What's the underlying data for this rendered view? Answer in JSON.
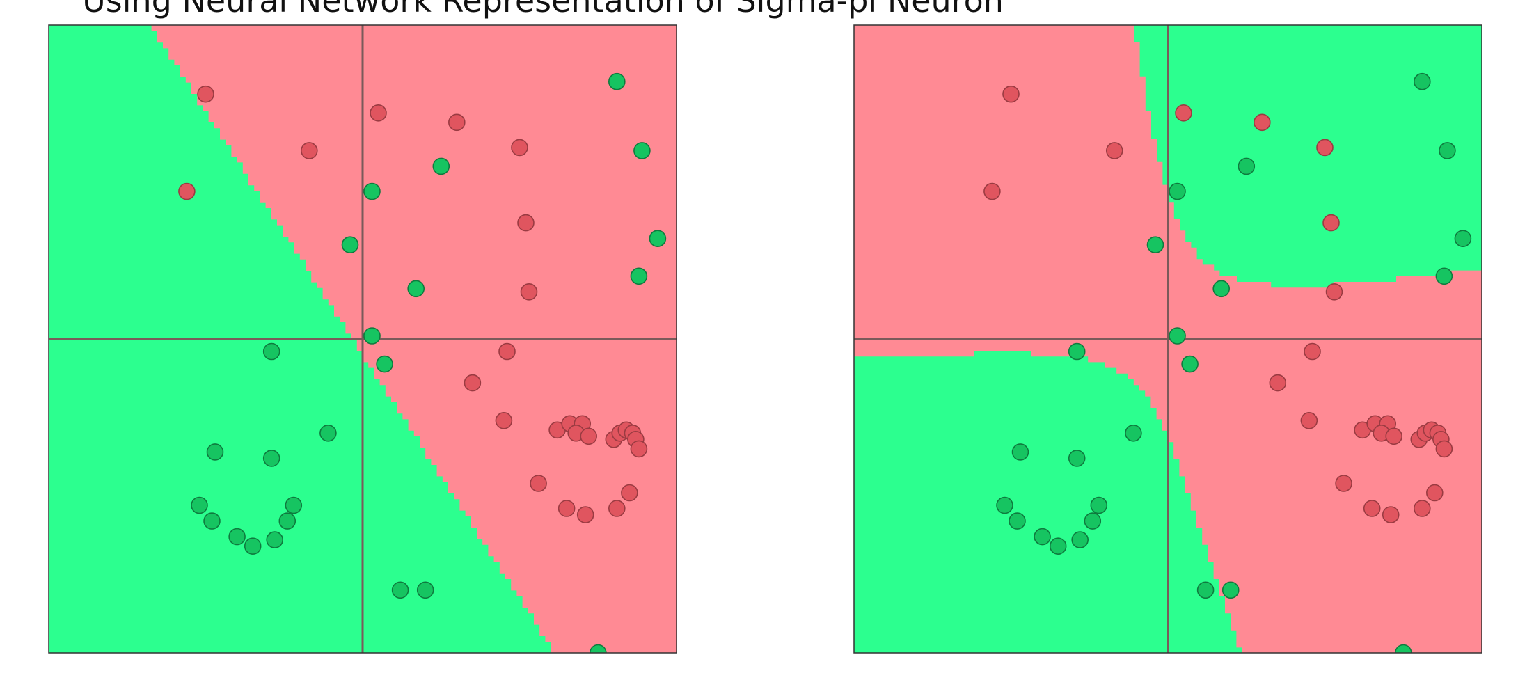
{
  "title": "Using Neural Network Representation of Sigma-pi Neuron",
  "colors": {
    "region_red": "#ff8a94",
    "region_green": "#2cff8f",
    "point_red": "#e0555f",
    "point_red_edge": "#9a3b42",
    "point_green": "#16c461",
    "point_green_edge": "#0f7a3e",
    "axis": "#7a5a5a",
    "frame": "#333333"
  },
  "chart_data": [
    {
      "type": "scatter",
      "model": "linear",
      "xlim": [
        -1,
        1
      ],
      "ylim": [
        -1,
        1
      ],
      "axes_through_origin": true,
      "grid": false,
      "legend": "none",
      "decision_boundary": "linear",
      "boundary_line": {
        "slope": -1.55,
        "intercept": -0.05
      },
      "series": [
        {
          "class": "red",
          "points": [
            [
              -0.5,
              0.78
            ],
            [
              -0.17,
              0.6
            ],
            [
              -0.56,
              0.47
            ],
            [
              0.05,
              0.72
            ],
            [
              0.3,
              0.69
            ],
            [
              0.5,
              0.61
            ],
            [
              0.52,
              0.37
            ],
            [
              0.53,
              0.15
            ],
            [
              0.46,
              -0.04
            ],
            [
              0.35,
              -0.14
            ],
            [
              0.45,
              -0.26
            ],
            [
              0.62,
              -0.29
            ],
            [
              0.66,
              -0.27
            ],
            [
              0.7,
              -0.27
            ],
            [
              0.68,
              -0.3
            ],
            [
              0.72,
              -0.31
            ],
            [
              0.8,
              -0.32
            ],
            [
              0.82,
              -0.3
            ],
            [
              0.84,
              -0.29
            ],
            [
              0.86,
              -0.3
            ],
            [
              0.87,
              -0.32
            ],
            [
              0.88,
              -0.35
            ],
            [
              0.56,
              -0.46
            ],
            [
              0.65,
              -0.54
            ],
            [
              0.71,
              -0.56
            ],
            [
              0.81,
              -0.54
            ],
            [
              0.85,
              -0.49
            ]
          ]
        },
        {
          "class": "green",
          "points": [
            [
              0.81,
              0.82
            ],
            [
              0.89,
              0.6
            ],
            [
              0.94,
              0.32
            ],
            [
              0.88,
              0.2
            ],
            [
              0.25,
              0.55
            ],
            [
              0.03,
              0.47
            ],
            [
              -0.04,
              0.3
            ],
            [
              0.17,
              0.16
            ],
            [
              0.03,
              0.01
            ],
            [
              0.07,
              -0.08
            ],
            [
              -0.29,
              -0.04
            ],
            [
              -0.11,
              -0.3
            ],
            [
              -0.47,
              -0.36
            ],
            [
              -0.29,
              -0.38
            ],
            [
              -0.52,
              -0.53
            ],
            [
              -0.48,
              -0.58
            ],
            [
              -0.4,
              -0.63
            ],
            [
              -0.35,
              -0.66
            ],
            [
              -0.28,
              -0.64
            ],
            [
              -0.24,
              -0.58
            ],
            [
              -0.22,
              -0.53
            ],
            [
              0.12,
              -0.8
            ],
            [
              0.2,
              -0.8
            ],
            [
              0.75,
              -1.0
            ]
          ]
        }
      ]
    },
    {
      "type": "scatter",
      "model": "sigma-pi",
      "xlim": [
        -1,
        1
      ],
      "ylim": [
        -1,
        1
      ],
      "axes_through_origin": true,
      "grid": false,
      "legend": "none",
      "decision_boundary": "nonlinear",
      "boundary_coeffs": {
        "c0": 0.05,
        "x": 0.1,
        "y": 0.05,
        "x2": 0.2,
        "y2": -0.35,
        "xy": -1.9,
        "x3": 0.0,
        "y3": 0.0,
        "x2y": 0.5,
        "xy2": -0.45
      },
      "series": [
        {
          "class": "red",
          "points": [
            [
              -0.5,
              0.78
            ],
            [
              -0.17,
              0.6
            ],
            [
              -0.56,
              0.47
            ],
            [
              0.05,
              0.72
            ],
            [
              0.3,
              0.69
            ],
            [
              0.5,
              0.61
            ],
            [
              0.52,
              0.37
            ],
            [
              0.53,
              0.15
            ],
            [
              0.46,
              -0.04
            ],
            [
              0.35,
              -0.14
            ],
            [
              0.45,
              -0.26
            ],
            [
              0.62,
              -0.29
            ],
            [
              0.66,
              -0.27
            ],
            [
              0.7,
              -0.27
            ],
            [
              0.68,
              -0.3
            ],
            [
              0.72,
              -0.31
            ],
            [
              0.8,
              -0.32
            ],
            [
              0.82,
              -0.3
            ],
            [
              0.84,
              -0.29
            ],
            [
              0.86,
              -0.3
            ],
            [
              0.87,
              -0.32
            ],
            [
              0.88,
              -0.35
            ],
            [
              0.56,
              -0.46
            ],
            [
              0.65,
              -0.54
            ],
            [
              0.71,
              -0.56
            ],
            [
              0.81,
              -0.54
            ],
            [
              0.85,
              -0.49
            ]
          ]
        },
        {
          "class": "green",
          "points": [
            [
              0.81,
              0.82
            ],
            [
              0.89,
              0.6
            ],
            [
              0.94,
              0.32
            ],
            [
              0.88,
              0.2
            ],
            [
              0.25,
              0.55
            ],
            [
              0.03,
              0.47
            ],
            [
              -0.04,
              0.3
            ],
            [
              0.17,
              0.16
            ],
            [
              0.03,
              0.01
            ],
            [
              0.07,
              -0.08
            ],
            [
              -0.29,
              -0.04
            ],
            [
              -0.11,
              -0.3
            ],
            [
              -0.47,
              -0.36
            ],
            [
              -0.29,
              -0.38
            ],
            [
              -0.52,
              -0.53
            ],
            [
              -0.48,
              -0.58
            ],
            [
              -0.4,
              -0.63
            ],
            [
              -0.35,
              -0.66
            ],
            [
              -0.28,
              -0.64
            ],
            [
              -0.24,
              -0.58
            ],
            [
              -0.22,
              -0.53
            ],
            [
              0.12,
              -0.8
            ],
            [
              0.2,
              -0.8
            ],
            [
              0.75,
              -1.0
            ]
          ]
        }
      ]
    }
  ]
}
